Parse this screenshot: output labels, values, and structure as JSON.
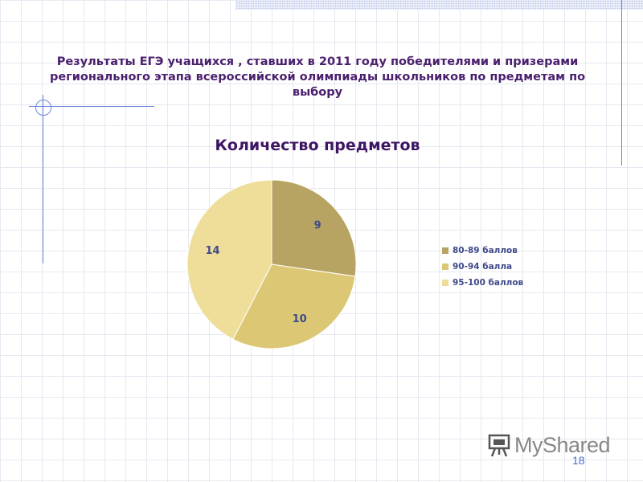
{
  "slide": {
    "title": "Результаты ЕГЭ учащихся , ставших в 2011 году победителями и призерами регионального этапа всероссийской олимпиады школьников по предметам по выбору",
    "page_number": "18"
  },
  "chart_data": {
    "type": "pie",
    "title": "Количество предметов",
    "categories": [
      "80-89 баллов",
      "90-94 балла",
      "95-100 баллов"
    ],
    "values": [
      9,
      10,
      14
    ],
    "colors": [
      "#b8a462",
      "#dcc874",
      "#efdd9a"
    ],
    "label_color": "#3e4a8a",
    "legend_position": "right",
    "start_angle": "top, clockwise"
  },
  "logo": {
    "text": "MyShared",
    "icon": "presentation-board-icon"
  },
  "colors": {
    "title": "#4a1f6e",
    "accent_lines": "#6d86d8",
    "grid": "#e6e9f0"
  }
}
